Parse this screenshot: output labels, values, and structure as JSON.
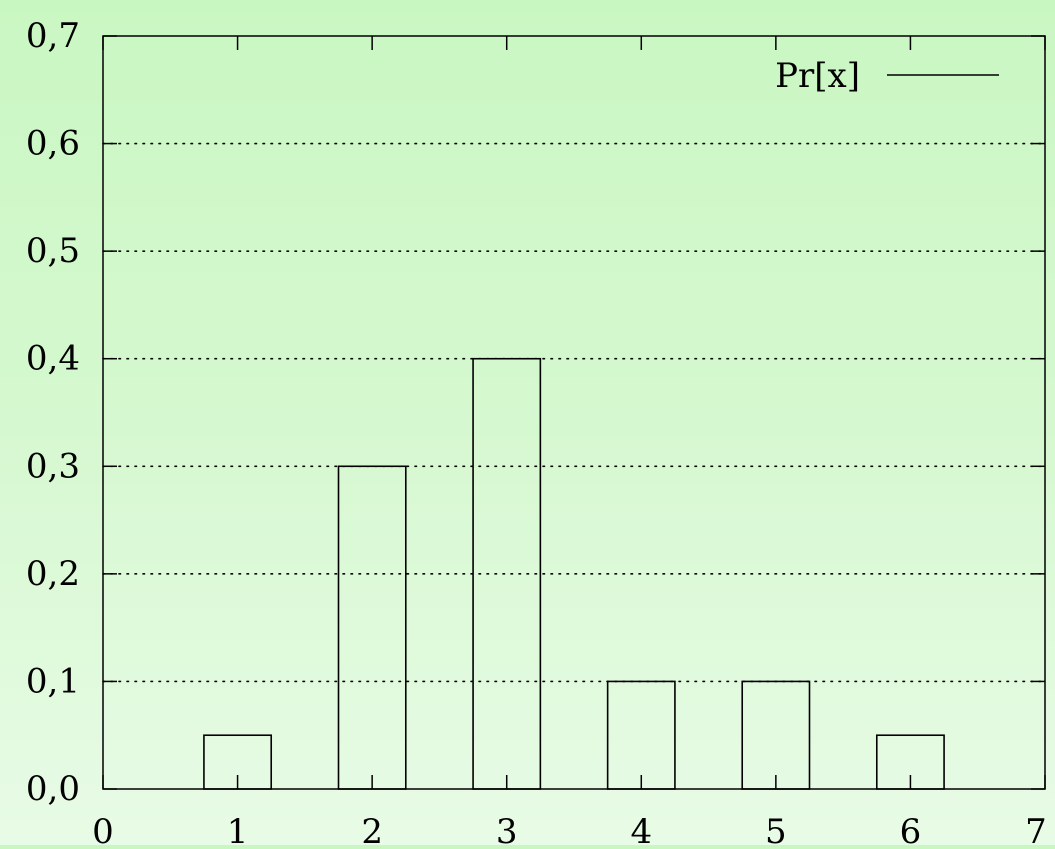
{
  "chart_data": {
    "type": "bar",
    "x": [
      1,
      2,
      3,
      4,
      5,
      6
    ],
    "values": [
      0.05,
      0.3,
      0.4,
      0.1,
      0.1,
      0.05
    ],
    "series": [
      {
        "name": "Pr[x]",
        "values": [
          0.05,
          0.3,
          0.4,
          0.1,
          0.1,
          0.05
        ]
      }
    ],
    "xlim": [
      0,
      7
    ],
    "ylim": [
      0,
      0.7
    ],
    "x_ticks": [
      0,
      1,
      2,
      3,
      4,
      5,
      6,
      7
    ],
    "x_tick_labels": [
      "0",
      "1",
      "2",
      "3",
      "4",
      "5",
      "6",
      "7"
    ],
    "y_ticks": [
      0,
      0.1,
      0.2,
      0.3,
      0.4,
      0.5,
      0.6,
      0.7
    ],
    "y_tick_labels": [
      "0,0",
      "0,1",
      "0,2",
      "0,3",
      "0,4",
      "0,5",
      "0,6",
      "0,7"
    ],
    "bar_width": 0.5,
    "grid": "horizontal dotted",
    "legend": {
      "position": "top-right",
      "label_text": "Pr[x]"
    },
    "bar_fill": "none",
    "bar_stroke": "#000000",
    "background": "green gradient"
  }
}
